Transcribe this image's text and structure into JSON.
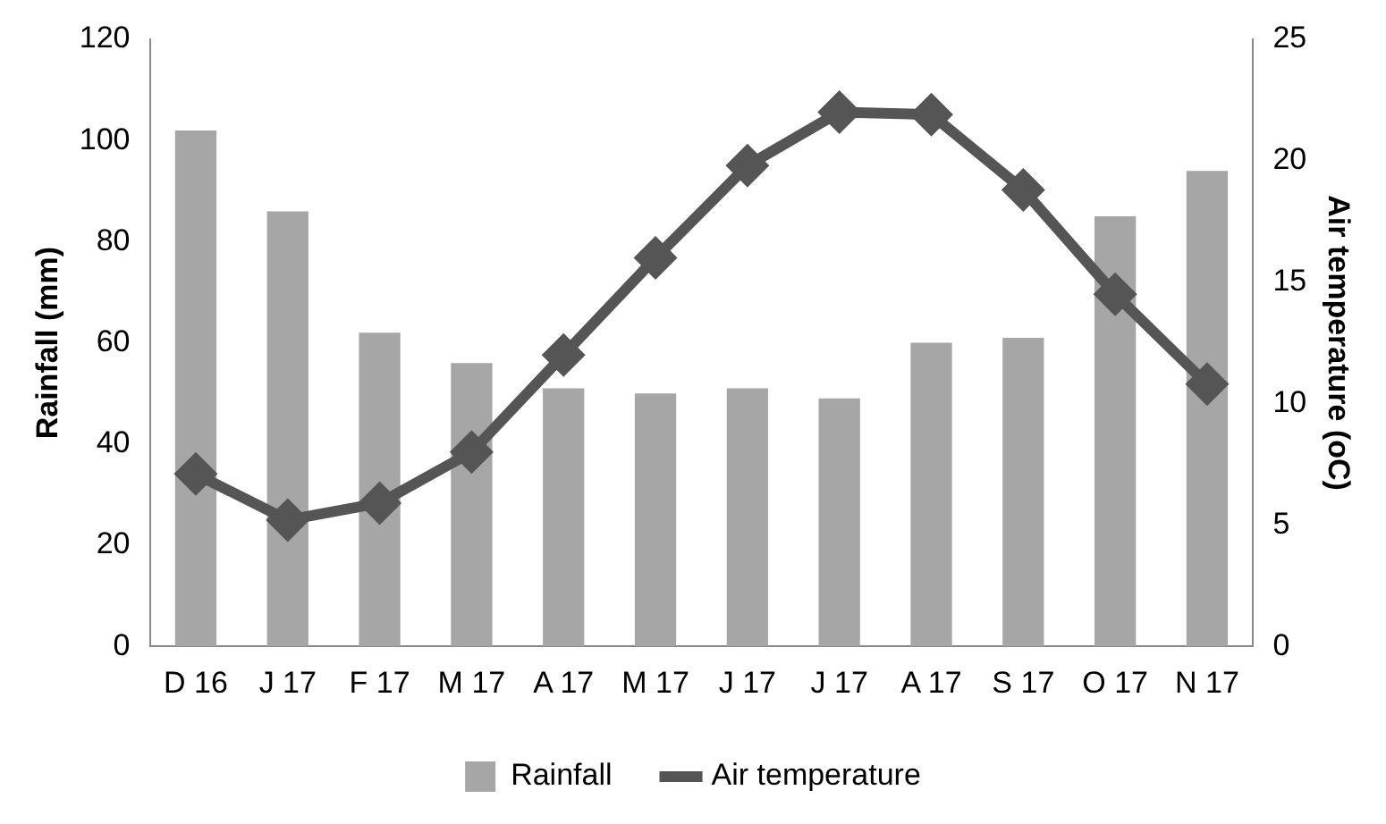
{
  "chart_data": {
    "type": "bar",
    "ylabel": "Rainfall (mm)",
    "y2label": "Air temperature (oC)",
    "categories": [
      "D 16",
      "J 17",
      "F 17",
      "M 17",
      "A 17",
      "M 17",
      "J 17",
      "J 17",
      "A 17",
      "S 17",
      "O 17",
      "N 17"
    ],
    "series": [
      {
        "name": "Rainfall",
        "color": "#a6a6a6",
        "values": [
          102,
          86,
          62,
          56,
          51,
          50,
          51,
          49,
          60,
          61,
          85,
          94
        ]
      },
      {
        "name": "Air temperature",
        "type": "line",
        "axis": "y2",
        "color": "#555555",
        "marker": "diamond",
        "values": [
          7.1,
          5.2,
          5.9,
          8.0,
          12.0,
          16.0,
          19.8,
          22.0,
          21.9,
          18.8,
          14.5,
          10.8
        ]
      }
    ],
    "ylim": [
      0,
      120
    ],
    "yticks": [
      0,
      20,
      40,
      60,
      80,
      100,
      120
    ],
    "y2lim": [
      0,
      25
    ],
    "y2ticks": [
      0,
      5,
      10,
      15,
      20,
      25
    ],
    "legend": "bottom",
    "grid": false
  }
}
